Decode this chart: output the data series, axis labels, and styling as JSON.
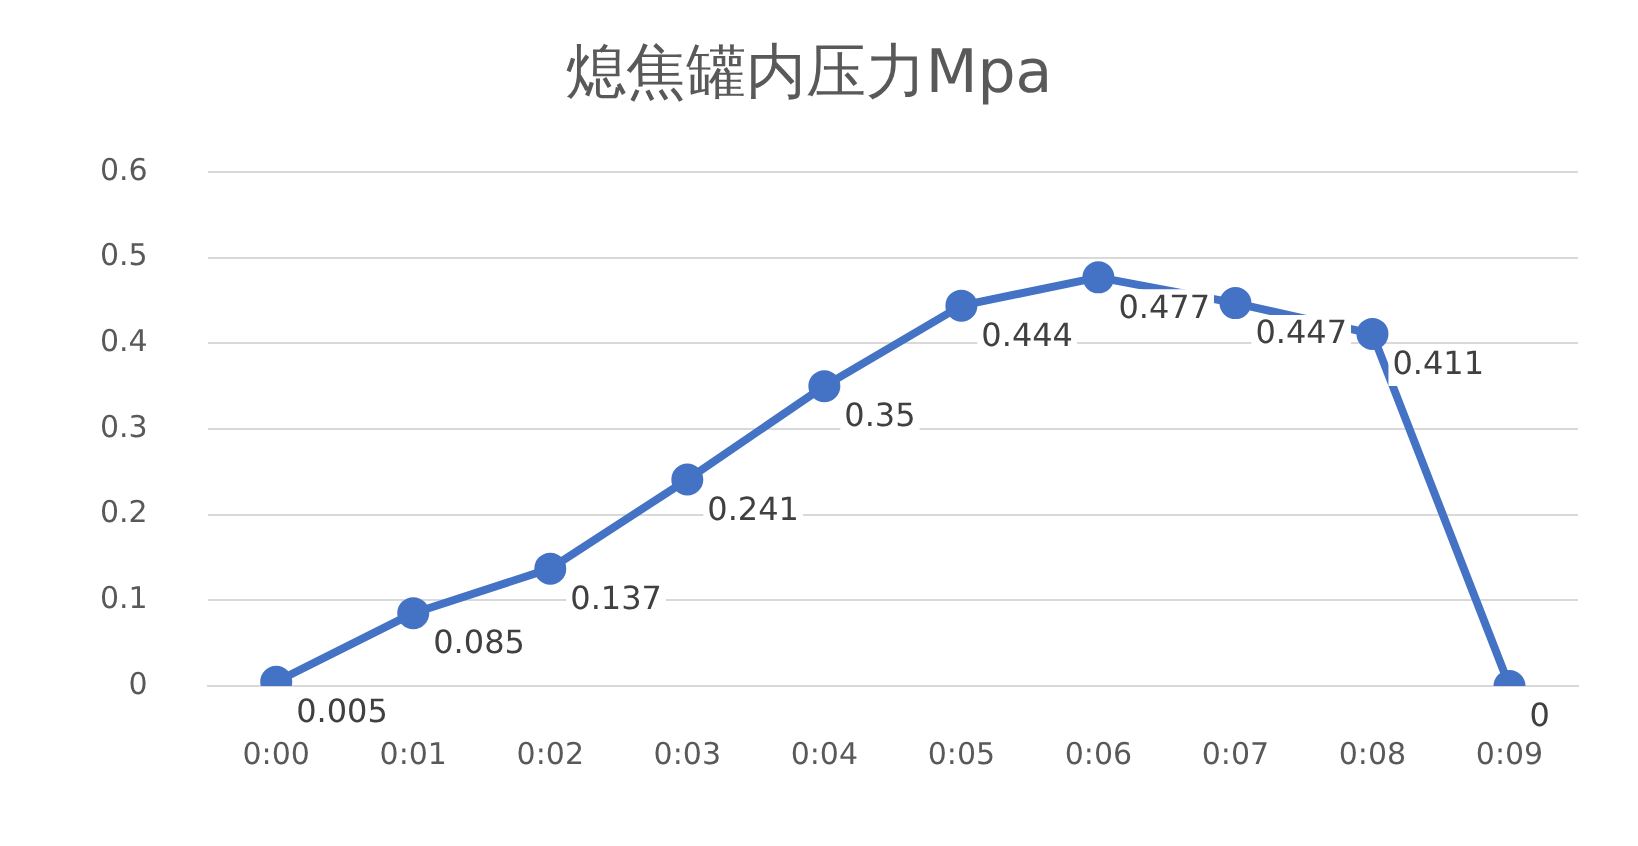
{
  "chart_data": {
    "type": "line",
    "title": "熄焦罐内压力Mpa",
    "categories": [
      "0:00",
      "0:01",
      "0:02",
      "0:03",
      "0:04",
      "0:05",
      "0:06",
      "0:07",
      "0:08",
      "0:09"
    ],
    "series": [
      {
        "color": "#4472c4",
        "values": [
          0.005,
          0.085,
          0.137,
          0.241,
          0.35,
          0.444,
          0.477,
          0.447,
          0.411,
          0
        ]
      }
    ],
    "ylim": [
      0,
      0.6
    ],
    "yticks": [
      0,
      0.1,
      0.2,
      0.3,
      0.4,
      0.5,
      0.6
    ],
    "grid": "y",
    "legend": false,
    "marker": "circle",
    "line_style": "solid",
    "data_labels": true
  }
}
